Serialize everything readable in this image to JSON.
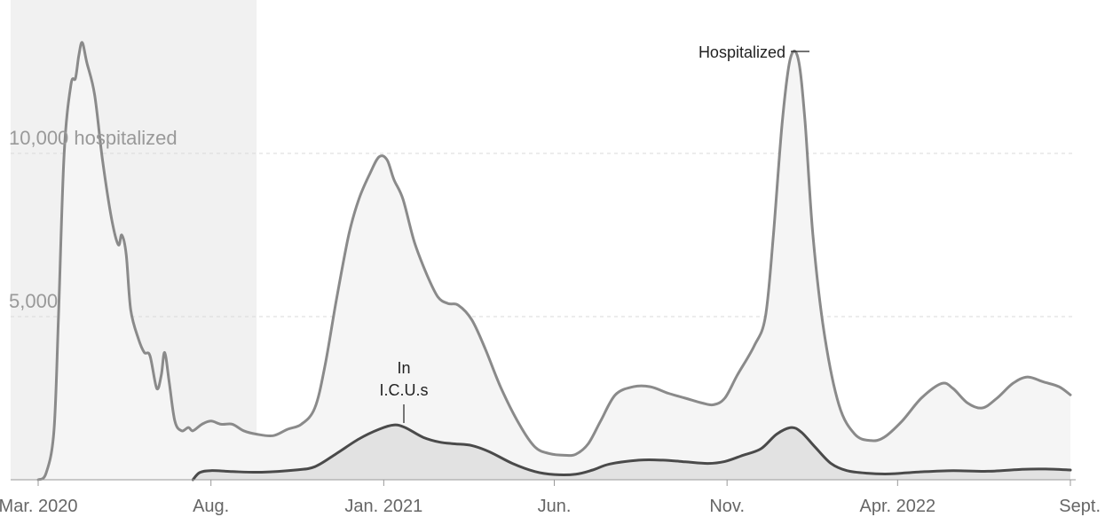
{
  "chart_data": {
    "type": "area",
    "x_axis": {
      "min": "2020-03-01",
      "max": "2022-09-01",
      "ticks": [
        {
          "date": "2020-03-01",
          "label": "Mar. 2020"
        },
        {
          "date": "2020-08-01",
          "label": "Aug."
        },
        {
          "date": "2021-01-01",
          "label": "Jan. 2021"
        },
        {
          "date": "2021-06-01",
          "label": "Jun."
        },
        {
          "date": "2021-11-01",
          "label": "Nov."
        },
        {
          "date": "2022-04-01",
          "label": "Apr. 2022"
        },
        {
          "date": "2022-09-01",
          "label": "Sept."
        }
      ]
    },
    "y_axis": {
      "min": 0,
      "max": 14500,
      "gridlines": [
        {
          "value": 5000,
          "label": "5,000"
        },
        {
          "value": 10000,
          "label": "10,000 hospitalized"
        }
      ]
    },
    "shaded_period": {
      "start": "2020-03-01",
      "end": "2020-09-01",
      "color": "#f1f1f1"
    },
    "series": [
      {
        "name": "Hospitalized",
        "line_color": "#8a8a8a",
        "fill_color": "#f5f5f5",
        "points": [
          [
            "2020-03-01",
            0
          ],
          [
            "2020-03-08",
            200
          ],
          [
            "2020-03-15",
            1500
          ],
          [
            "2020-03-19",
            5000
          ],
          [
            "2020-03-24",
            10000
          ],
          [
            "2020-03-30",
            12100
          ],
          [
            "2020-04-03",
            12300
          ],
          [
            "2020-04-06",
            13000
          ],
          [
            "2020-04-09",
            13400
          ],
          [
            "2020-04-13",
            12800
          ],
          [
            "2020-04-20",
            11800
          ],
          [
            "2020-04-27",
            9800
          ],
          [
            "2020-05-05",
            8000
          ],
          [
            "2020-05-11",
            7200
          ],
          [
            "2020-05-14",
            7500
          ],
          [
            "2020-05-18",
            6900
          ],
          [
            "2020-05-22",
            5200
          ],
          [
            "2020-05-29",
            4300
          ],
          [
            "2020-06-03",
            3900
          ],
          [
            "2020-06-08",
            3800
          ],
          [
            "2020-06-14",
            2800
          ],
          [
            "2020-06-18",
            3200
          ],
          [
            "2020-06-21",
            3900
          ],
          [
            "2020-06-25",
            3000
          ],
          [
            "2020-06-30",
            1800
          ],
          [
            "2020-07-06",
            1500
          ],
          [
            "2020-07-12",
            1600
          ],
          [
            "2020-07-16",
            1500
          ],
          [
            "2020-07-24",
            1700
          ],
          [
            "2020-08-01",
            1800
          ],
          [
            "2020-08-10",
            1700
          ],
          [
            "2020-08-20",
            1700
          ],
          [
            "2020-08-30",
            1500
          ],
          [
            "2020-09-10",
            1400
          ],
          [
            "2020-09-25",
            1350
          ],
          [
            "2020-10-08",
            1550
          ],
          [
            "2020-10-20",
            1700
          ],
          [
            "2020-11-01",
            2200
          ],
          [
            "2020-11-10",
            3500
          ],
          [
            "2020-11-20",
            5500
          ],
          [
            "2020-12-01",
            7500
          ],
          [
            "2020-12-10",
            8600
          ],
          [
            "2020-12-20",
            9400
          ],
          [
            "2020-12-28",
            9900
          ],
          [
            "2021-01-04",
            9800
          ],
          [
            "2021-01-10",
            9200
          ],
          [
            "2021-01-18",
            8600
          ],
          [
            "2021-01-28",
            7300
          ],
          [
            "2021-02-08",
            6300
          ],
          [
            "2021-02-18",
            5600
          ],
          [
            "2021-02-27",
            5400
          ],
          [
            "2021-03-08",
            5350
          ],
          [
            "2021-03-20",
            4900
          ],
          [
            "2021-04-01",
            4000
          ],
          [
            "2021-04-15",
            2800
          ],
          [
            "2021-05-01",
            1700
          ],
          [
            "2021-05-15",
            1000
          ],
          [
            "2021-05-28",
            800
          ],
          [
            "2021-06-10",
            750
          ],
          [
            "2021-06-20",
            780
          ],
          [
            "2021-07-01",
            1100
          ],
          [
            "2021-07-12",
            1800
          ],
          [
            "2021-07-25",
            2600
          ],
          [
            "2021-08-10",
            2850
          ],
          [
            "2021-08-25",
            2850
          ],
          [
            "2021-09-10",
            2650
          ],
          [
            "2021-09-25",
            2500
          ],
          [
            "2021-10-10",
            2350
          ],
          [
            "2021-10-20",
            2300
          ],
          [
            "2021-10-30",
            2500
          ],
          [
            "2021-11-10",
            3200
          ],
          [
            "2021-11-25",
            4100
          ],
          [
            "2021-12-05",
            5000
          ],
          [
            "2021-12-12",
            7500
          ],
          [
            "2021-12-20",
            11000
          ],
          [
            "2021-12-27",
            12900
          ],
          [
            "2022-01-03",
            12900
          ],
          [
            "2022-01-09",
            11000
          ],
          [
            "2022-01-16",
            7500
          ],
          [
            "2022-01-26",
            4500
          ],
          [
            "2022-02-08",
            2300
          ],
          [
            "2022-02-22",
            1400
          ],
          [
            "2022-03-08",
            1200
          ],
          [
            "2022-03-20",
            1300
          ],
          [
            "2022-04-05",
            1800
          ],
          [
            "2022-04-22",
            2500
          ],
          [
            "2022-05-10",
            2950
          ],
          [
            "2022-05-20",
            2800
          ],
          [
            "2022-06-02",
            2350
          ],
          [
            "2022-06-15",
            2200
          ],
          [
            "2022-06-28",
            2500
          ],
          [
            "2022-07-12",
            2950
          ],
          [
            "2022-07-25",
            3150
          ],
          [
            "2022-08-08",
            3000
          ],
          [
            "2022-08-22",
            2850
          ],
          [
            "2022-09-01",
            2600
          ]
        ]
      },
      {
        "name": "In I.C.U.s",
        "line_color": "#4a4a4a",
        "fill_color": "#e2e2e2",
        "points": [
          [
            "2020-07-16",
            0
          ],
          [
            "2020-07-22",
            220
          ],
          [
            "2020-08-01",
            280
          ],
          [
            "2020-08-20",
            250
          ],
          [
            "2020-09-15",
            230
          ],
          [
            "2020-10-15",
            300
          ],
          [
            "2020-11-01",
            400
          ],
          [
            "2020-11-20",
            800
          ],
          [
            "2020-12-10",
            1250
          ],
          [
            "2020-12-28",
            1550
          ],
          [
            "2021-01-10",
            1680
          ],
          [
            "2021-01-20",
            1600
          ],
          [
            "2021-02-05",
            1300
          ],
          [
            "2021-02-20",
            1150
          ],
          [
            "2021-03-05",
            1100
          ],
          [
            "2021-03-20",
            1050
          ],
          [
            "2021-04-05",
            850
          ],
          [
            "2021-04-25",
            500
          ],
          [
            "2021-05-15",
            250
          ],
          [
            "2021-06-01",
            160
          ],
          [
            "2021-06-20",
            170
          ],
          [
            "2021-07-05",
            300
          ],
          [
            "2021-07-20",
            480
          ],
          [
            "2021-08-15",
            600
          ],
          [
            "2021-09-05",
            600
          ],
          [
            "2021-09-25",
            550
          ],
          [
            "2021-10-15",
            500
          ],
          [
            "2021-10-30",
            560
          ],
          [
            "2021-11-15",
            750
          ],
          [
            "2021-12-01",
            950
          ],
          [
            "2021-12-15",
            1400
          ],
          [
            "2021-12-28",
            1600
          ],
          [
            "2022-01-06",
            1450
          ],
          [
            "2022-01-18",
            1000
          ],
          [
            "2022-02-01",
            500
          ],
          [
            "2022-02-15",
            280
          ],
          [
            "2022-03-05",
            200
          ],
          [
            "2022-03-25",
            180
          ],
          [
            "2022-04-20",
            240
          ],
          [
            "2022-05-20",
            280
          ],
          [
            "2022-06-20",
            260
          ],
          [
            "2022-07-20",
            320
          ],
          [
            "2022-08-10",
            330
          ],
          [
            "2022-09-01",
            300
          ]
        ]
      }
    ],
    "annotations": [
      {
        "series": "Hospitalized",
        "lines": [
          "Hospitalized"
        ]
      },
      {
        "series": "In I.C.U.s",
        "lines": [
          "In",
          "I.C.U.s"
        ]
      }
    ]
  }
}
